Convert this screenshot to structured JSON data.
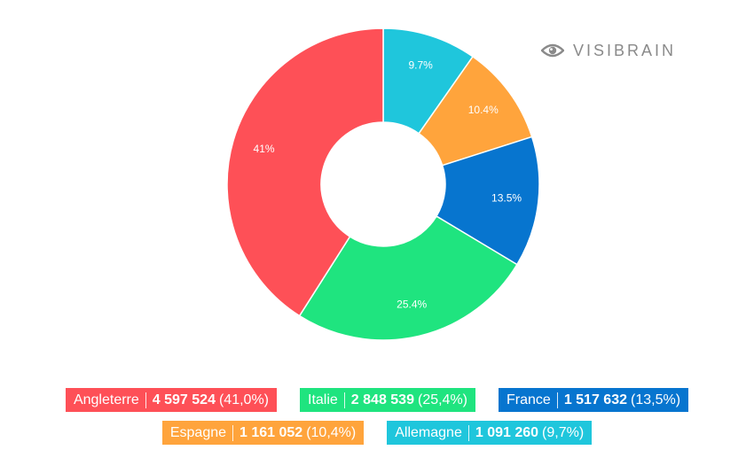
{
  "brand": {
    "name": "VISIBRAIN",
    "icon": "eye-icon",
    "color": "#8a8a8a"
  },
  "chart_data": {
    "type": "pie",
    "variant": "donut",
    "title": "",
    "slices": [
      {
        "name": "Allemagne",
        "value": 1091260,
        "percent": 9.7,
        "label": "9.7%",
        "legend_value": "1 091 260",
        "legend_pct": "(9,7%)",
        "color": "#1fc6dc"
      },
      {
        "name": "Espagne",
        "value": 1161052,
        "percent": 10.4,
        "label": "10.4%",
        "legend_value": "1 161 052",
        "legend_pct": "(10,4%)",
        "color": "#ffa43c"
      },
      {
        "name": "France",
        "value": 1517632,
        "percent": 13.5,
        "label": "13.5%",
        "legend_value": "1 517 632",
        "legend_pct": "(13,5%)",
        "color": "#0775cf"
      },
      {
        "name": "Italie",
        "value": 2848539,
        "percent": 25.4,
        "label": "25.4%",
        "legend_value": "2 848 539",
        "legend_pct": "(25,4%)",
        "color": "#1fe47f"
      },
      {
        "name": "Angleterre",
        "value": 4597524,
        "percent": 41.0,
        "label": "41%",
        "legend_value": "4 597 524",
        "legend_pct": "(41,0%)",
        "color": "#fe5057"
      }
    ],
    "legend": {
      "placement": "bottom",
      "rows": [
        [
          "Angleterre",
          "Italie",
          "France"
        ],
        [
          "Espagne",
          "Allemagne"
        ]
      ]
    }
  }
}
